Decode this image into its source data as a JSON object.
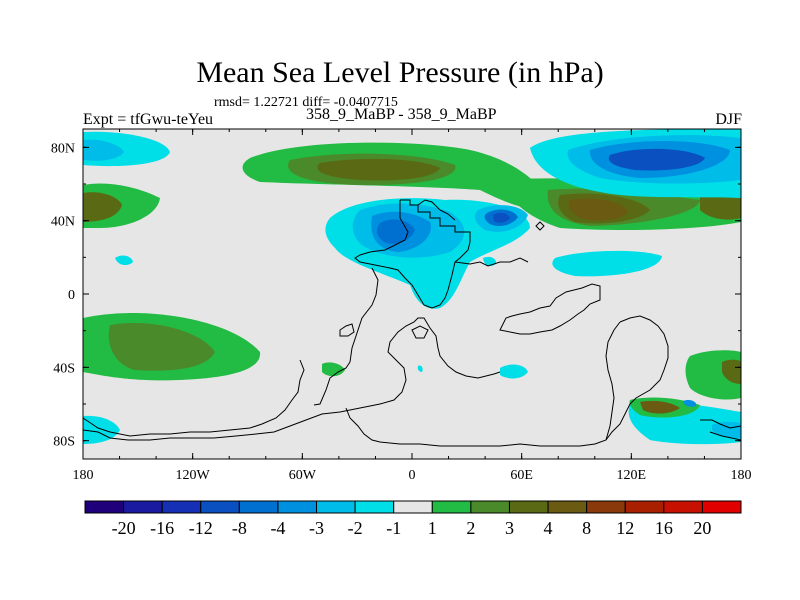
{
  "header": {
    "title": "Mean Sea Level Pressure (in hPa)",
    "stats": "rmsd= 1.22721 diff= -0.0407715",
    "left_label": "Expt = tfGwu-teYeu",
    "center_label": "358_9_MaBP - 358_9_MaBP",
    "right_label": "DJF"
  },
  "chart_data": {
    "type": "heatmap",
    "title": "Mean Sea Level Pressure (in hPa)",
    "projection": "cylindrical equidistant",
    "season": "DJF",
    "xlim": [
      -180,
      180
    ],
    "ylim": [
      -90,
      90
    ],
    "x_ticks": [
      {
        "value": -180,
        "label": "180"
      },
      {
        "value": -120,
        "label": "120W"
      },
      {
        "value": -60,
        "label": "60W"
      },
      {
        "value": 0,
        "label": "0"
      },
      {
        "value": 60,
        "label": "60E"
      },
      {
        "value": 120,
        "label": "120E"
      },
      {
        "value": 180,
        "label": "180"
      }
    ],
    "y_ticks": [
      {
        "value": 80,
        "label": "80N"
      },
      {
        "value": 40,
        "label": "40N"
      },
      {
        "value": 0,
        "label": "0"
      },
      {
        "value": -40,
        "label": "40S"
      },
      {
        "value": -80,
        "label": "80S"
      }
    ],
    "colorbar": {
      "levels": [
        "-20",
        "-16",
        "-12",
        "-8",
        "-4",
        "-3",
        "-2",
        "-1",
        "1",
        "2",
        "3",
        "4",
        "8",
        "12",
        "16",
        "20"
      ],
      "colors": [
        "#20007a",
        "#1a1aa0",
        "#1530b5",
        "#0a50c0",
        "#0070d0",
        "#0090e0",
        "#00bce8",
        "#00dfe8",
        "#e6e6e6",
        "#22bb44",
        "#4a8a2a",
        "#5a6a14",
        "#6a5a12",
        "#8a3a0a",
        "#a82000",
        "#c81000",
        "#e00000"
      ]
    },
    "features": [
      {
        "name": "arctic-high",
        "value_range": "2 to 8",
        "lon": -45,
        "lat": 68,
        "color_index": 9
      },
      {
        "name": "arctic-high-core",
        "value_range": "4 to 8",
        "lon": -45,
        "lat": 68,
        "color_index": 11
      },
      {
        "name": "siberian-low",
        "value_range": "-8 to -4",
        "lon": 135,
        "lat": 75,
        "color_index": 3
      },
      {
        "name": "asian-high",
        "value_range": "8 to 12",
        "lon": 95,
        "lat": 45,
        "color_index": 12
      },
      {
        "name": "western-pacific-high",
        "value_range": "4 to 8",
        "lon": -170,
        "lat": 48,
        "color_index": 11
      },
      {
        "name": "eurasian-low",
        "value_range": "-8 to -3",
        "lon": -8,
        "lat": 32,
        "color_index": 4
      },
      {
        "name": "middle-east-low",
        "value_range": "-8",
        "lon": 52,
        "lat": 40,
        "color_index": 3
      },
      {
        "name": "southern-high-west",
        "value_range": "2 to 4",
        "lon": -140,
        "lat": -38,
        "color_index": 10
      },
      {
        "name": "antarctic-high-east",
        "value_range": "4 to 12",
        "lon": 140,
        "lat": -65,
        "color_index": 12
      },
      {
        "name": "antarctic-low-west",
        "value_range": "-2 to -1",
        "lon": -165,
        "lat": -75,
        "color_index": 7
      }
    ]
  }
}
